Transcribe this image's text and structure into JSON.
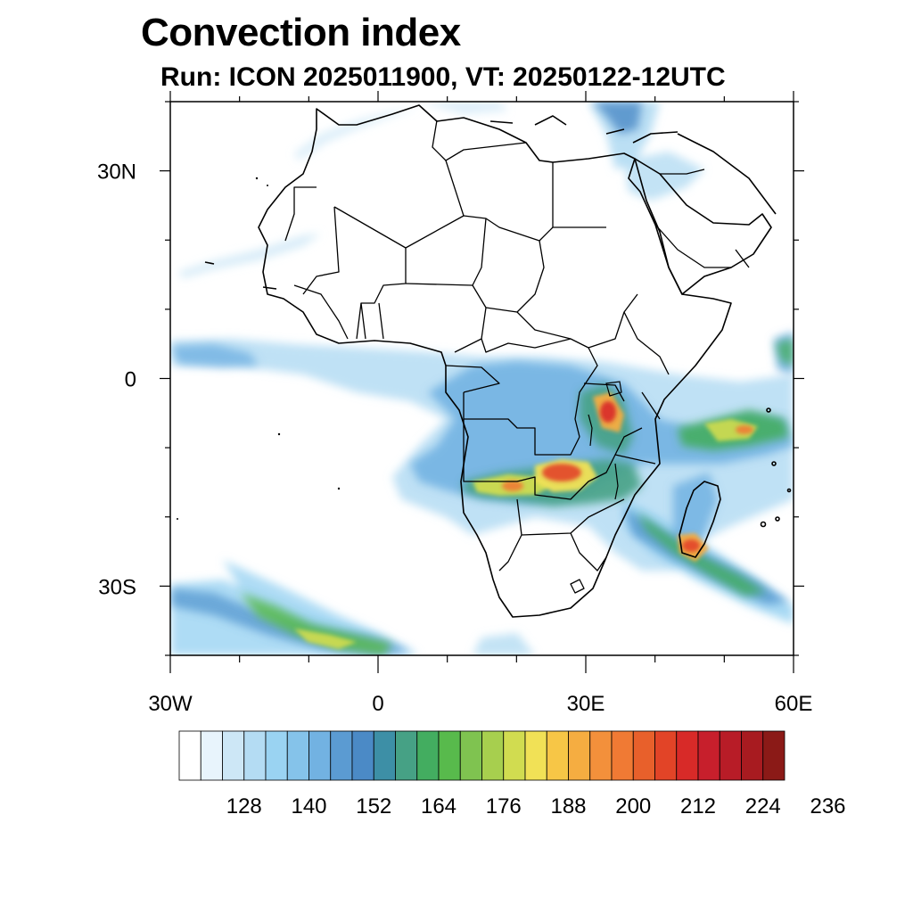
{
  "header": {
    "title": "Convection index",
    "subtitle": "Run: ICON 2025011900,  VT: 20250122-12UTC"
  },
  "map": {
    "lon_range": [
      -30,
      60
    ],
    "lat_range": [
      -40,
      40
    ],
    "lat_ticks": [
      {
        "value": 30,
        "label": "30N"
      },
      {
        "value": 0,
        "label": "0"
      },
      {
        "value": -30,
        "label": "30S"
      }
    ],
    "lon_ticks": [
      {
        "value": -30,
        "label": "30W"
      },
      {
        "value": 0,
        "label": "0"
      },
      {
        "value": 30,
        "label": "30E"
      },
      {
        "value": 60,
        "label": "60E"
      }
    ],
    "minor_lat_ticks": [
      40,
      20,
      10,
      -10,
      -20,
      -40
    ],
    "minor_lon_ticks": [
      -20,
      -10,
      10,
      20,
      40,
      50
    ],
    "colors": {
      "coast": "#000000",
      "frame": "#000000"
    }
  },
  "colorbar": {
    "colors": [
      "#ffffff",
      "#e8f4fc",
      "#cde7f6",
      "#b4dcf3",
      "#9ad3f2",
      "#85c3ea",
      "#72b2e2",
      "#5b9bd2",
      "#4b8ac6",
      "#3d8fa6",
      "#46a185",
      "#43ad60",
      "#58ba4c",
      "#7fc350",
      "#a7cf4e",
      "#d1dc50",
      "#f1e156",
      "#f7c646",
      "#f5ad41",
      "#f3903b",
      "#f07a34",
      "#e8602b",
      "#e24427",
      "#d82a28",
      "#c71f2c",
      "#b81c27",
      "#a81b20",
      "#8b1a17"
    ],
    "labels": [
      "128",
      "140",
      "152",
      "164",
      "176",
      "188",
      "200",
      "212",
      "224",
      "236"
    ]
  }
}
